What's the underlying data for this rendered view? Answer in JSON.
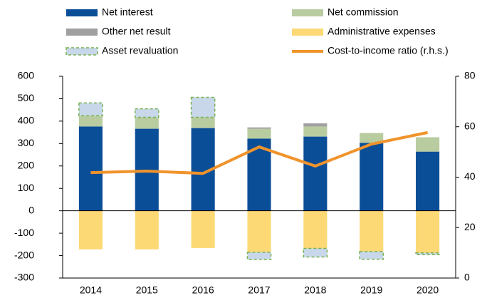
{
  "chart_data": {
    "type": "bar",
    "stacked": true,
    "categories": [
      "2014",
      "2015",
      "2016",
      "2017",
      "2018",
      "2019",
      "2020"
    ],
    "series": [
      {
        "name": "Net interest",
        "color": "#0b4e98",
        "values": [
          376,
          366,
          369,
          322,
          331,
          303,
          264
        ]
      },
      {
        "name": "Net commission",
        "color": "#b9cca0",
        "values": [
          48,
          51,
          48,
          44,
          45,
          44,
          64
        ]
      },
      {
        "name": "Other net result",
        "color": "#a0a0a0",
        "values": [
          null,
          null,
          null,
          6,
          14,
          null,
          null
        ]
      },
      {
        "name": "Administrative expenses",
        "color": "#fcd975",
        "values": [
          -172,
          -172,
          -166,
          -185,
          -168,
          -182,
          -188
        ]
      },
      {
        "name": "Asset revaluation",
        "color": "#c8d8ea",
        "edgecolor": "#77b150",
        "linestyle": "dashed",
        "values": [
          57,
          38,
          89,
          -32,
          -38,
          -34,
          -8
        ]
      },
      {
        "name": "Cost-to-income ratio (r.h.s.)",
        "type": "line",
        "axis": "y2",
        "color": "#f0932b",
        "values": [
          41.8,
          42.4,
          41.5,
          52,
          44.4,
          53.1,
          57.7
        ]
      }
    ],
    "ylim": [
      -300,
      600
    ],
    "yticks": [
      -300,
      -200,
      -100,
      0,
      100,
      200,
      300,
      400,
      500,
      600
    ],
    "y2lim": [
      0,
      80
    ],
    "y2ticks": [
      0,
      20,
      40,
      60,
      80
    ]
  }
}
